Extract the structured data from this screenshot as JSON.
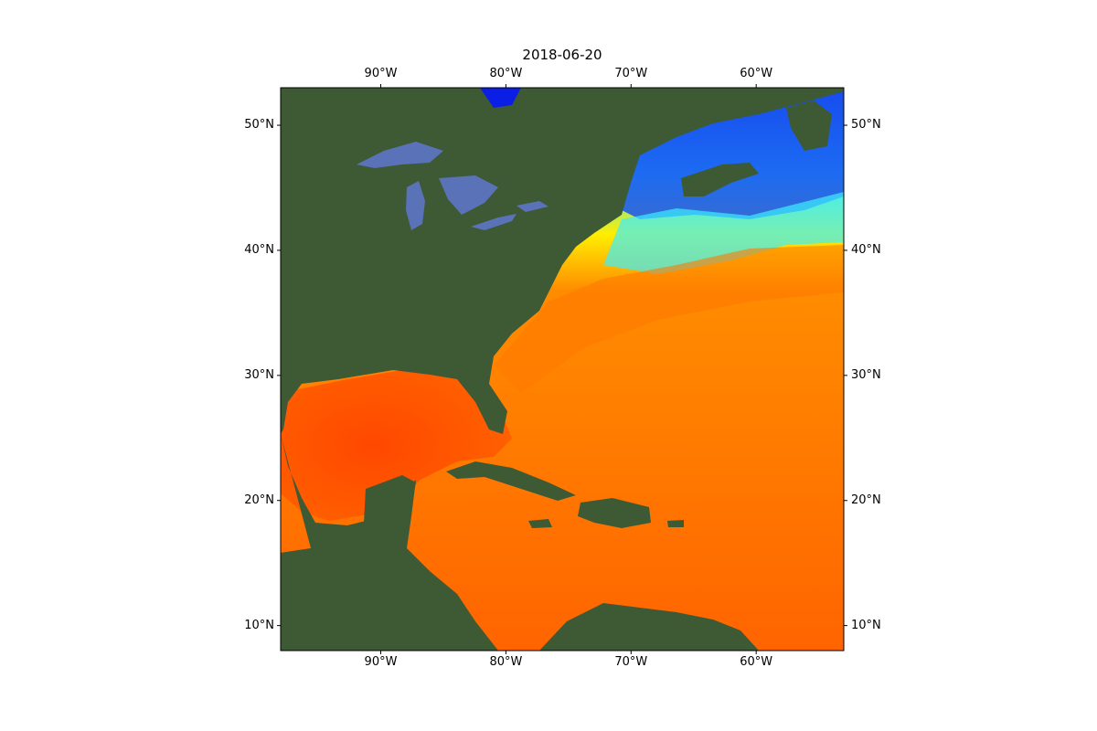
{
  "title": "2018-06-20",
  "axes": {
    "lon_range": [
      -98,
      -53
    ],
    "lat_range": [
      8,
      53
    ],
    "lon_ticks": [
      {
        "value": -90,
        "label": "90°W"
      },
      {
        "value": -80,
        "label": "80°W"
      },
      {
        "value": -70,
        "label": "70°W"
      },
      {
        "value": -60,
        "label": "60°W"
      }
    ],
    "lat_ticks": [
      {
        "value": 50,
        "label": "50°N"
      },
      {
        "value": 40,
        "label": "40°N"
      },
      {
        "value": 30,
        "label": "30°N"
      },
      {
        "value": 20,
        "label": "20°N"
      },
      {
        "value": 10,
        "label": "10°N"
      }
    ]
  },
  "colors": {
    "land": "#3d5a35",
    "lakes": "#5a72b8",
    "sst_warm": "#ff6a00",
    "sst_hot": "#ff2a00",
    "sst_mid": "#ffd200",
    "sst_cool": "#2ee6ff",
    "sst_cold": "#0a1ee6"
  }
}
